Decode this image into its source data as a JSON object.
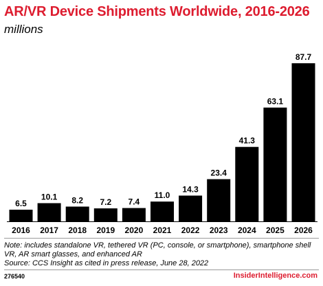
{
  "title": "AR/VR Device Shipments Worldwide, 2016-2026",
  "subtitle": "millions",
  "chart_data": {
    "type": "bar",
    "title": "AR/VR Device Shipments Worldwide, 2016-2026",
    "subtitle": "millions",
    "categories": [
      "2016",
      "2017",
      "2018",
      "2019",
      "2020",
      "2021",
      "2022",
      "2023",
      "2024",
      "2025",
      "2026"
    ],
    "values": [
      6.5,
      10.1,
      8.2,
      7.2,
      7.4,
      11.0,
      14.3,
      23.4,
      41.3,
      63.1,
      87.7
    ],
    "value_labels": [
      "6.5",
      "10.1",
      "8.2",
      "7.2",
      "7.4",
      "11.0",
      "14.3",
      "23.4",
      "41.3",
      "63.1",
      "87.7"
    ],
    "xlabel": "",
    "ylabel": "",
    "ylim": [
      0,
      87.7
    ],
    "grid": false,
    "bar_color": "#000000"
  },
  "note": "Note: includes standalone VR, tethered VR (PC, console, or smartphone), smartphone shell VR, AR smart glasses, and enhanced AR",
  "source": "Source: CCS Insight as cited in press release, June 28, 2022",
  "chart_id": "276540",
  "brand": "InsiderIntelligence.com",
  "colors": {
    "accent": "#dd1c2f",
    "bar": "#000000",
    "rule": "#9a9a9a"
  }
}
